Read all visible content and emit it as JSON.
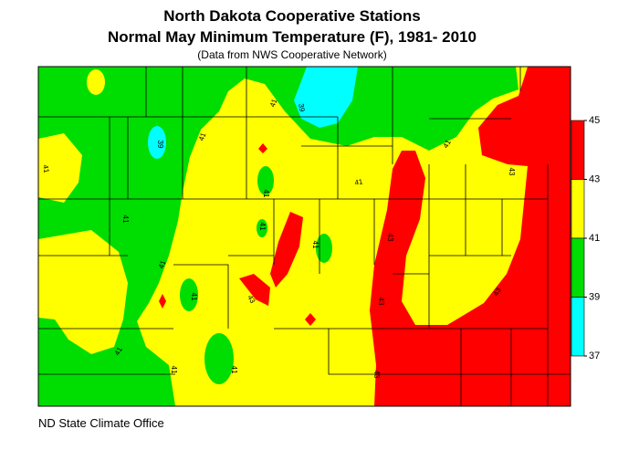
{
  "header": {
    "title": "North Dakota Cooperative Stations",
    "subtitle": "Normal May Minimum Temperature (F), 1981- 2010",
    "source_note": "(Data from NWS Cooperative Network)"
  },
  "legend": {
    "ticks": [
      45,
      43,
      41,
      39,
      37
    ],
    "colors": [
      "#ff0000",
      "#ffff00",
      "#00dd00",
      "#00ffff"
    ]
  },
  "contour_labels": [
    41,
    39,
    41,
    39,
    41,
    41,
    41,
    41,
    41,
    41,
    43,
    43,
    43,
    43,
    43,
    41,
    41,
    41,
    41,
    41,
    43,
    41
  ],
  "footer": "ND State Climate Office"
}
